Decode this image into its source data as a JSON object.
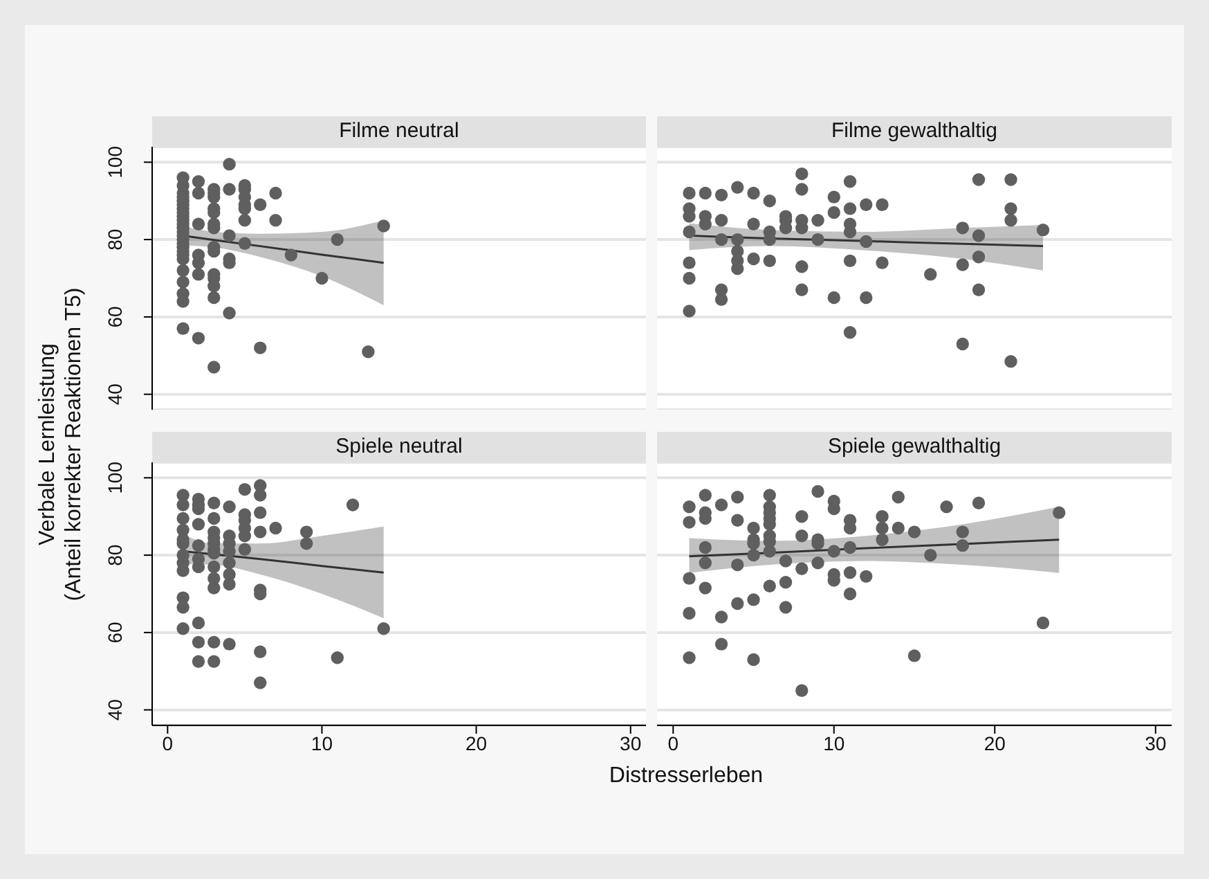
{
  "chart_data": [
    {
      "type": "scatter",
      "title": "Filme neutral",
      "ylabel": "Verbale Lernleistung\n(Anteil korrekter Reaktionen T5)",
      "xlim": [
        -1,
        31
      ],
      "xticks": [
        0,
        10,
        20,
        30
      ],
      "ylim": [
        36,
        104
      ],
      "yticks": [
        40,
        60,
        80,
        100
      ],
      "grid": "y",
      "tick_labels": "y",
      "series": [
        {
          "marker": "circle",
          "color": "#5f5f5f",
          "x": [
            1,
            1,
            1,
            1,
            1,
            1,
            1,
            1,
            1,
            1,
            1,
            1,
            1,
            1,
            1,
            1,
            1,
            1,
            1,
            1,
            1,
            1,
            1,
            1,
            1,
            2,
            2,
            2,
            2,
            2,
            2,
            2,
            3,
            3,
            3,
            3,
            3,
            3,
            3,
            3,
            3,
            3,
            3,
            3,
            3,
            3,
            4,
            4,
            4,
            4,
            4,
            4,
            5,
            5,
            5,
            5,
            5,
            5,
            5,
            6,
            6,
            7,
            7,
            8,
            10,
            11,
            13,
            14
          ],
          "values": [
            96,
            94,
            92,
            91,
            90,
            89,
            88,
            87,
            86,
            85,
            84,
            83,
            82,
            81,
            80,
            79,
            78,
            77,
            76,
            75,
            72,
            69,
            66,
            64,
            57,
            95,
            92,
            84,
            76,
            74,
            71,
            54.5,
            93,
            92,
            91,
            88,
            87,
            84,
            83,
            78,
            77,
            71,
            70,
            68,
            65,
            47,
            99.5,
            93,
            81,
            75,
            74,
            61,
            94,
            93,
            91,
            89,
            88,
            85,
            79,
            89,
            52,
            92,
            85,
            76,
            70,
            80,
            51,
            83.5
          ]
        },
        {
          "type": "line",
          "marker": "none",
          "color": "#333333",
          "x": [
            1,
            3,
            6,
            10,
            14
          ],
          "values": [
            81,
            79.9,
            78.3,
            76.1,
            74
          ],
          "lower": [
            78.5,
            78,
            75.5,
            70.5,
            63
          ],
          "upper": [
            83.5,
            82,
            81.5,
            82,
            85
          ]
        }
      ]
    },
    {
      "type": "scatter",
      "title": "Filme gewalthaltig",
      "xlim": [
        -1,
        31
      ],
      "xticks": [
        0,
        10,
        20,
        30
      ],
      "ylim": [
        36,
        104
      ],
      "yticks": [
        40,
        60,
        80,
        100
      ],
      "grid": "y",
      "tick_labels": false,
      "series": [
        {
          "marker": "circle",
          "color": "#5f5f5f",
          "x": [
            1,
            1,
            1,
            1,
            1,
            1,
            1,
            2,
            2,
            2,
            3,
            3,
            3,
            3,
            3,
            4,
            4,
            4,
            4,
            4,
            5,
            5,
            5,
            6,
            6,
            6,
            6,
            7,
            7,
            7,
            8,
            8,
            8,
            8,
            8,
            8,
            9,
            9,
            10,
            10,
            10,
            11,
            11,
            11,
            11,
            11,
            11,
            12,
            12,
            12,
            13,
            13,
            16,
            18,
            18,
            18,
            19,
            19,
            19,
            19,
            21,
            21,
            21,
            21,
            23
          ],
          "values": [
            92,
            88,
            86,
            82,
            74,
            70,
            61.5,
            92,
            86,
            84,
            91.5,
            85,
            80,
            67,
            64.5,
            93.5,
            80,
            77,
            74.5,
            72.5,
            92,
            84,
            75,
            90,
            82,
            80,
            74.5,
            86,
            83,
            85,
            97,
            93,
            85,
            83,
            73,
            67,
            85,
            80,
            91,
            87,
            65,
            95,
            88,
            84,
            82,
            74.5,
            56,
            89,
            79.5,
            65,
            89,
            74,
            71,
            83,
            73.5,
            53,
            95.5,
            81,
            75.5,
            67,
            95.5,
            88,
            85,
            48.5,
            82.5
          ]
        },
        {
          "type": "line",
          "marker": "none",
          "color": "#333333",
          "x": [
            1,
            6,
            12,
            18,
            23
          ],
          "values": [
            81,
            80.3,
            79.6,
            78.9,
            78.3
          ],
          "lower": [
            77.3,
            78.3,
            77.2,
            75,
            72
          ],
          "upper": [
            84.2,
            82.5,
            82,
            83,
            83.8
          ]
        }
      ]
    },
    {
      "type": "scatter",
      "title": "Spiele neutral",
      "xlabel": "Distresserleben",
      "xlim": [
        -1,
        31
      ],
      "xticks": [
        0,
        10,
        20,
        30
      ],
      "ylim": [
        36,
        104
      ],
      "yticks": [
        40,
        60,
        80,
        100
      ],
      "grid": "y",
      "series": [
        {
          "marker": "circle",
          "color": "#5f5f5f",
          "x": [
            1,
            1,
            1,
            1,
            1,
            1,
            1,
            1,
            1,
            1,
            1,
            1,
            2,
            2,
            2,
            2,
            2,
            2,
            2,
            2,
            2,
            2,
            3,
            3,
            3,
            3,
            3,
            3,
            3,
            3,
            3,
            3,
            3,
            3,
            4,
            4,
            4,
            4,
            4,
            4,
            4,
            4,
            5,
            5,
            5,
            5,
            5,
            5,
            6,
            6,
            6,
            6,
            6,
            6,
            6,
            6,
            7,
            9,
            9,
            11,
            12,
            14
          ],
          "values": [
            95.5,
            93,
            89.5,
            86.5,
            84,
            83,
            80,
            78,
            76,
            69,
            66.5,
            61,
            94.5,
            93,
            92,
            88,
            82.5,
            79,
            77,
            62.5,
            57.5,
            52.5,
            93.5,
            89.5,
            86,
            84.5,
            83,
            81.5,
            80.5,
            77,
            74,
            71.5,
            57.5,
            52.5,
            92.5,
            85,
            83,
            81,
            78,
            75,
            72.5,
            57,
            97,
            90.5,
            89,
            87,
            85,
            81.5,
            98,
            95.5,
            91,
            86,
            71,
            70,
            55,
            47,
            87,
            86,
            83,
            53.5,
            93,
            61
          ]
        },
        {
          "type": "line",
          "marker": "none",
          "color": "#333333",
          "x": [
            1,
            3,
            6,
            10,
            14
          ],
          "values": [
            81,
            80.2,
            79,
            77.2,
            75.5
          ],
          "lower": [
            77.7,
            77.5,
            75,
            70,
            63.7
          ],
          "upper": [
            85.4,
            83,
            83,
            85,
            87.4
          ]
        }
      ]
    },
    {
      "type": "scatter",
      "title": "Spiele gewalthaltig",
      "xlim": [
        -1,
        31
      ],
      "xticks": [
        0,
        10,
        20,
        30
      ],
      "ylim": [
        36,
        104
      ],
      "yticks": [
        40,
        60,
        80,
        100
      ],
      "grid": "y",
      "tick_labels": "x",
      "series": [
        {
          "marker": "circle",
          "color": "#5f5f5f",
          "x": [
            1,
            1,
            1,
            1,
            1,
            2,
            2,
            2,
            2,
            2,
            2,
            3,
            3,
            3,
            4,
            4,
            4,
            4,
            5,
            5,
            5,
            5,
            5,
            5,
            6,
            6,
            6,
            6,
            6,
            6,
            6,
            6,
            6,
            7,
            7,
            7,
            8,
            8,
            8,
            8,
            9,
            9,
            9,
            9,
            10,
            10,
            10,
            10,
            10,
            11,
            11,
            11,
            11,
            11,
            12,
            13,
            13,
            13,
            14,
            14,
            15,
            15,
            16,
            17,
            18,
            18,
            19,
            23,
            24
          ],
          "values": [
            92.5,
            88.5,
            74,
            65,
            53.5,
            95.5,
            91,
            89.5,
            82,
            78,
            71.5,
            93,
            64,
            57,
            95,
            89,
            77.5,
            67.5,
            87,
            84,
            83,
            80,
            68.5,
            53,
            95.5,
            92.5,
            91,
            89.5,
            88,
            85,
            83.5,
            81,
            72,
            78.5,
            73,
            66.5,
            90,
            85,
            76.5,
            45,
            96.5,
            84,
            83,
            78,
            94,
            92,
            81,
            75,
            73.5,
            89,
            87,
            82,
            75.5,
            70,
            74.5,
            90,
            87,
            84,
            95,
            87,
            86,
            54,
            80,
            92.5,
            86,
            82.5,
            93.5,
            62.5,
            91
          ]
        },
        {
          "type": "line",
          "marker": "none",
          "color": "#333333",
          "x": [
            1,
            6,
            12,
            18,
            24
          ],
          "values": [
            79.7,
            80.6,
            81.8,
            82.9,
            84
          ],
          "lower": [
            75.4,
            77.5,
            78.5,
            77.5,
            75.4
          ],
          "upper": [
            84.4,
            83.7,
            85,
            88,
            92.5
          ]
        }
      ]
    }
  ]
}
